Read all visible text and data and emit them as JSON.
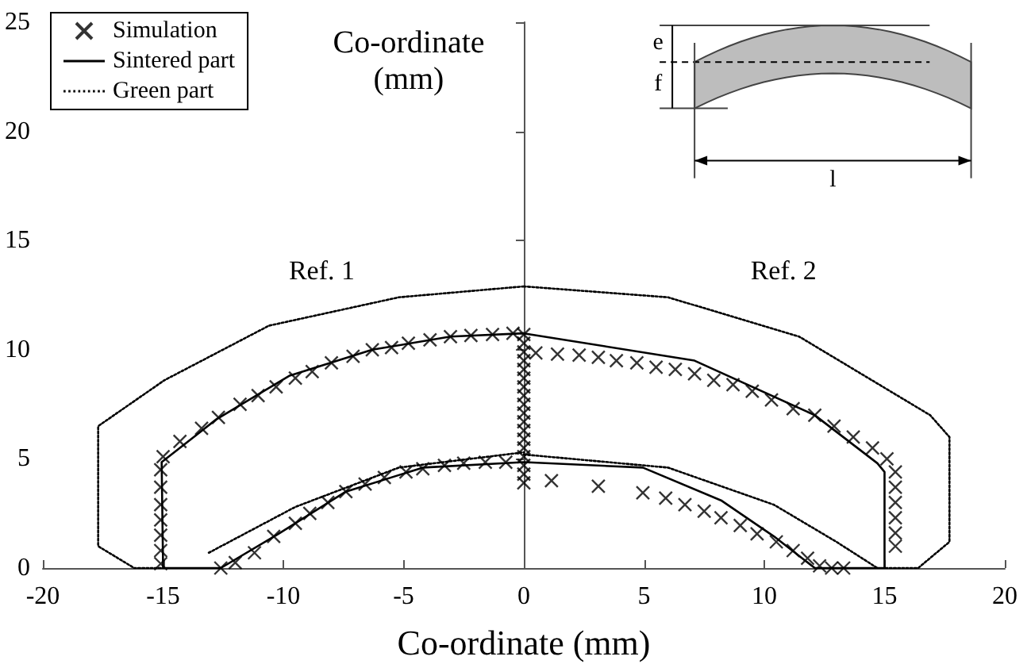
{
  "chart_data": {
    "type": "line",
    "xlabel": "Co-ordinate (mm)",
    "ylabel": "Co-ordinate (mm)",
    "xlim": [
      -20,
      20
    ],
    "xticks": [
      -20,
      -15,
      -10,
      -5,
      0,
      5,
      10,
      15,
      20
    ],
    "ylim": [
      0,
      25
    ],
    "yticks": [
      0,
      5,
      10,
      15,
      20,
      25
    ],
    "legend": "top left",
    "annotations": [
      "Ref. 1",
      "Ref. 2",
      "e",
      "f",
      "l"
    ],
    "series": [
      {
        "name": "Simulation",
        "type": "scatter",
        "marker": "cross",
        "color": "#000000",
        "x": [
          -0.45,
          -1.3,
          -2.2,
          -3.05,
          -3.9,
          -4.8,
          -5.5,
          -6.3,
          -7.1,
          -8.0,
          -8.8,
          -9.5,
          -10.3,
          -11.05,
          -11.8,
          -12.7,
          -13.4,
          -14.3,
          -15.0,
          -15.1,
          -15.1,
          -15.1,
          -15.1,
          -15.1,
          -15.1,
          -15.1,
          -12.6,
          -12.0,
          -11.2,
          -10.4,
          -9.5,
          -8.9,
          -8.15,
          -7.4,
          -6.6,
          -5.8,
          -4.9,
          -4.2,
          -3.3,
          -2.5,
          -1.6,
          -0.75,
          0,
          0,
          0,
          0,
          0,
          0,
          0,
          0,
          0,
          0,
          0,
          0,
          0,
          0,
          0,
          0,
          0,
          0,
          0.5,
          1.4,
          2.3,
          3.1,
          3.85,
          4.7,
          5.5,
          6.3,
          7.1,
          7.9,
          8.7,
          9.5,
          10.3,
          11.2,
          12.1,
          12.9,
          13.7,
          14.5,
          15.1,
          15.45,
          15.45,
          15.45,
          15.45,
          15.45,
          15.45,
          13.3,
          12.8,
          12.3,
          1.15,
          3.1,
          4.95,
          5.9,
          6.7,
          7.5,
          8.2,
          9.0,
          9.7,
          10.5,
          11.2,
          11.8
        ],
        "values": [
          10.75,
          10.7,
          10.65,
          10.6,
          10.45,
          10.3,
          10.1,
          10.0,
          9.7,
          9.4,
          9.0,
          8.7,
          8.3,
          7.9,
          7.5,
          6.9,
          6.4,
          5.8,
          5.1,
          4.5,
          3.7,
          2.9,
          2.2,
          1.5,
          0.8,
          0.2,
          0,
          0.25,
          0.7,
          1.45,
          2.05,
          2.5,
          3.0,
          3.5,
          3.85,
          4.15,
          4.4,
          4.55,
          4.7,
          4.8,
          4.85,
          4.85,
          3.9,
          4.3,
          4.7,
          5.1,
          5.5,
          5.9,
          6.3,
          6.7,
          7.1,
          7.5,
          7.9,
          8.3,
          8.7,
          9.1,
          9.5,
          9.9,
          10.3,
          10.7,
          9.85,
          9.8,
          9.75,
          9.65,
          9.5,
          9.4,
          9.2,
          9.1,
          8.9,
          8.6,
          8.4,
          8.1,
          7.7,
          7.3,
          7.0,
          6.5,
          6.0,
          5.5,
          5.0,
          4.4,
          3.7,
          3.0,
          2.3,
          1.6,
          1.0,
          0,
          0,
          0.1,
          4.0,
          3.75,
          3.45,
          3.2,
          2.9,
          2.6,
          2.3,
          1.95,
          1.57,
          1.2,
          0.8,
          0.45
        ]
      },
      {
        "name": "Sintered part",
        "line_style": "solid",
        "color": "#000000",
        "x": [
          0,
          -3.05,
          -6.3,
          -9.76,
          -12.8,
          -15.06,
          -15,
          -13.8,
          -12.6,
          -10.2,
          -7.4,
          -4.2,
          0,
          null,
          0,
          7.1,
          12.1,
          14.7,
          15.0,
          15.0,
          13.5,
          12.1,
          10.4,
          8.2,
          4.95,
          0
        ],
        "values": [
          10.75,
          10.6,
          10.0,
          8.8,
          6.8,
          4.85,
          0,
          0,
          0,
          1.57,
          3.5,
          4.6,
          4.85,
          null,
          10.75,
          9.5,
          7.0,
          4.8,
          4.4,
          0,
          0,
          0,
          1.45,
          3.1,
          4.6,
          4.85
        ]
      },
      {
        "name": "Green part",
        "line_style": "dotted",
        "color": "#000000",
        "x": [
          0,
          -5.2,
          -10.6,
          -14.95,
          -17.7,
          -17.7,
          -16.2,
          -15,
          null,
          -13.1,
          -9.5,
          -5.2,
          0,
          null,
          0,
          6.0,
          11.45,
          16.9,
          17.7,
          17.7,
          16.4,
          15,
          null,
          0,
          6.0,
          10.4,
          13.0,
          14.7
        ],
        "values": [
          12.9,
          12.4,
          11.1,
          8.6,
          6.5,
          1.0,
          0,
          0,
          null,
          0.7,
          2.8,
          4.6,
          5.3,
          null,
          12.9,
          12.4,
          10.6,
          7.0,
          6.0,
          1.2,
          0,
          0,
          null,
          5.2,
          4.6,
          2.9,
          1.2,
          0
        ]
      }
    ]
  }
}
